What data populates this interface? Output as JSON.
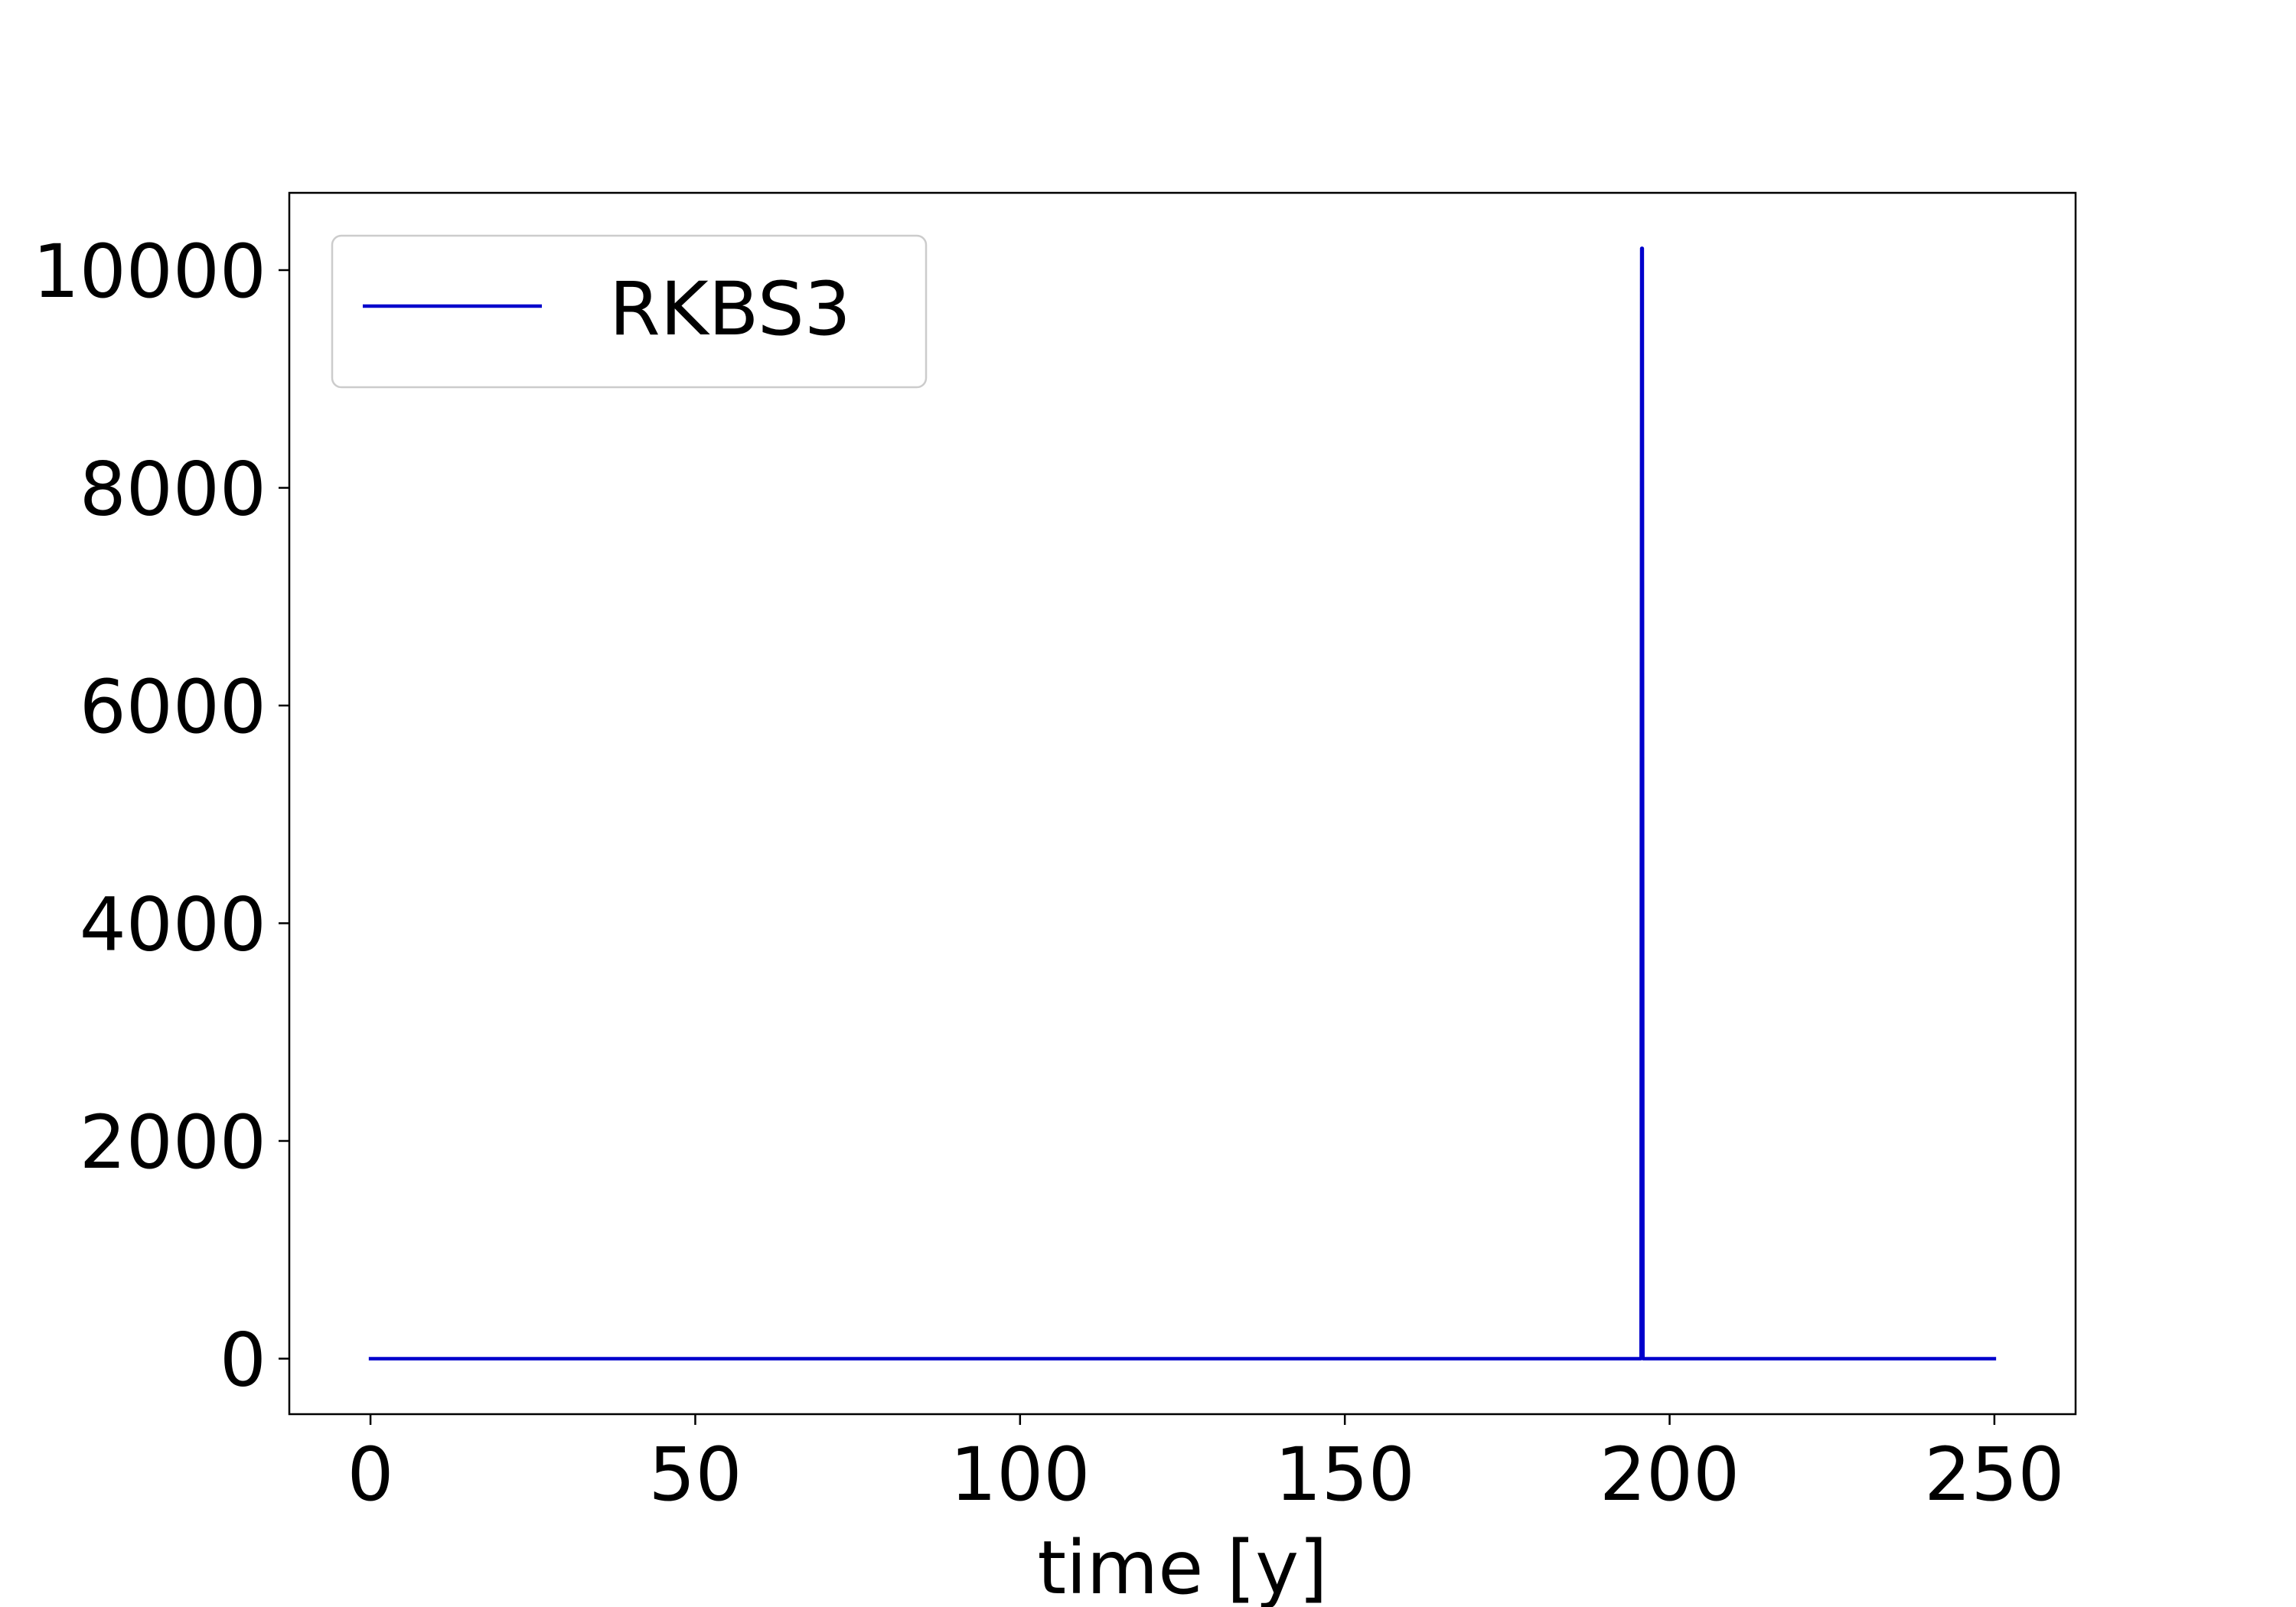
{
  "chart_data": {
    "type": "line",
    "title": "",
    "xlabel": "time [y]",
    "ylabel": "",
    "xlim": [
      -12.5,
      262.5
    ],
    "ylim": [
      -510,
      10710
    ],
    "xticks": [
      0,
      50,
      100,
      150,
      200,
      250
    ],
    "xtick_labels": [
      "0",
      "50",
      "100",
      "150",
      "200",
      "250"
    ],
    "yticks": [
      0,
      2000,
      4000,
      6000,
      8000,
      10000
    ],
    "ytick_labels": [
      "0",
      "2000",
      "4000",
      "6000",
      "8000",
      "10000"
    ],
    "grid": false,
    "legend_position": "upper-left",
    "series": [
      {
        "name": "RKBS3",
        "color": "#0000cc",
        "x": [
          0,
          195.6,
          195.7,
          195.8,
          195.9,
          250
        ],
        "y": [
          0,
          0,
          10200,
          10200,
          0,
          0
        ]
      }
    ]
  }
}
